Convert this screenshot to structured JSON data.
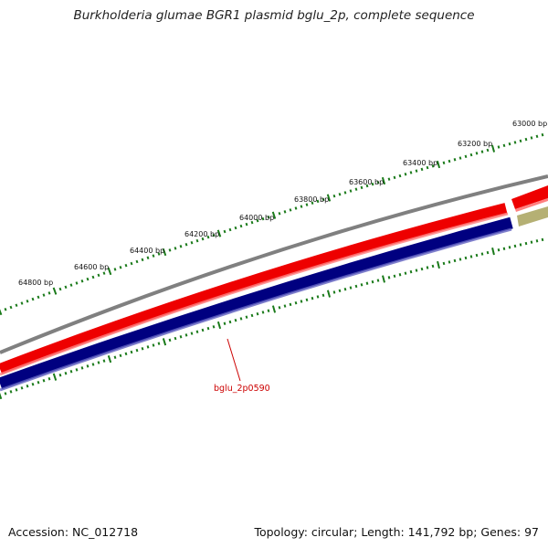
{
  "title": "Burkholderia glumae BGR1 plasmid bglu_2p, complete sequence",
  "footer": {
    "accession": "Accession: NC_012718",
    "info": "Topology: circular; Length: 141,792 bp; Genes: 97"
  },
  "ruler": {
    "labels": [
      "63000 bp",
      "63200 bp",
      "63400 bp",
      "63600 bp",
      "63800 bp",
      "64000 bp",
      "64200 bp",
      "64400 bp",
      "64600 bp",
      "64800 bp"
    ]
  },
  "gene_label": "bglu_2p0590",
  "colors": {
    "backbone": "#808080",
    "forward_strand": "#ff0000",
    "reverse_strand": "#000080",
    "other_feature": "#b5b074",
    "tick": "#1a7a1a",
    "gene_label": "#cc0000"
  }
}
